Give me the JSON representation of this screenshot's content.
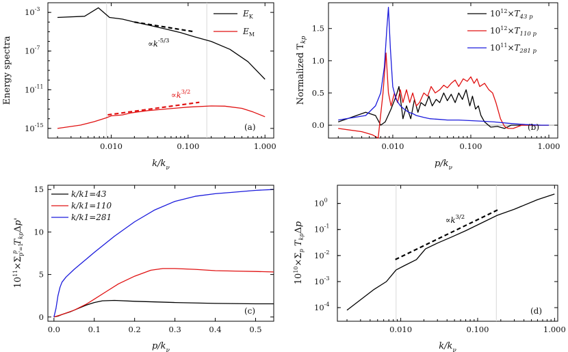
{
  "chart_data": [
    {
      "id": "a",
      "type": "line",
      "panel_label": "(a)",
      "xscale": "log",
      "yscale": "log",
      "xlim": [
        0.0015,
        1.3
      ],
      "ylim": [
        1e-16,
        0.01
      ],
      "xticks": [
        0.01,
        0.1,
        1.0
      ],
      "xtick_labels": [
        "0.010",
        "0.100",
        "1.000"
      ],
      "yticks": [
        0.001,
        1e-07,
        1e-11,
        1e-15
      ],
      "ytick_labels": [
        {
          "base": "10",
          "exp": "-3"
        },
        {
          "base": "10",
          "exp": "-7"
        },
        {
          "base": "10",
          "exp": "-11"
        },
        {
          "base": "10",
          "exp": "-15"
        }
      ],
      "vlines": [
        0.0087,
        0.175
      ],
      "xlabel": "k/kν",
      "ylabel": "Energy spectra",
      "legend_position": "top-right",
      "series": [
        {
          "name": "E_K",
          "label_main": "E",
          "label_sub": "K",
          "color": "#000000",
          "x": [
            0.002,
            0.0045,
            0.0068,
            0.0095,
            0.014,
            0.02,
            0.03,
            0.05,
            0.08,
            0.12,
            0.2,
            0.35,
            0.6,
            1.0
          ],
          "y": [
            0.0003,
            0.0004,
            0.003,
            0.0003,
            0.0002,
            0.0001,
            5e-05,
            2e-05,
            8e-06,
            3e-06,
            1e-06,
            1.5e-07,
            8e-09,
            1.2e-10
          ]
        },
        {
          "name": "E_M",
          "label_main": "E",
          "label_sub": "M",
          "color": "#e01010",
          "x": [
            0.002,
            0.004,
            0.006,
            0.0085,
            0.01,
            0.014,
            0.018,
            0.022,
            0.03,
            0.05,
            0.1,
            0.2,
            0.3,
            0.5,
            0.7,
            1.0
          ],
          "y": [
            1e-15,
            2.2e-15,
            5e-15,
            1.2e-14,
            2e-14,
            2.5e-14,
            4e-14,
            5e-14,
            7e-14,
            1e-13,
            1.6e-13,
            2.1e-13,
            2e-13,
            1.2e-13,
            5e-14,
            1.6e-14
          ]
        }
      ],
      "fits": [
        {
          "x": [
            0.02,
            0.12
          ],
          "y": [
            0.0001,
            1e-05
          ],
          "color": "#000000"
        },
        {
          "x": [
            0.009,
            0.14
          ],
          "y": [
            2.5e-14,
            5e-13
          ],
          "color": "#e01010"
        }
      ],
      "annotations": [
        {
          "prefix": "∝k",
          "exp": "-5/3",
          "color": "#000000",
          "at_x": 0.03,
          "at_y": 3e-07
        },
        {
          "prefix": "∝k",
          "exp": "3/2",
          "color": "#e01010",
          "at_x": 0.06,
          "at_y": 1.5e-12
        }
      ]
    },
    {
      "id": "b",
      "type": "line",
      "panel_label": "(b)",
      "xscale": "log",
      "yscale": "linear",
      "xlim": [
        0.0015,
        1.3
      ],
      "ylim": [
        -0.2,
        1.9
      ],
      "xticks": [
        0.01,
        0.1,
        1.0
      ],
      "xtick_labels": [
        "0.010",
        "0.100",
        "1.000"
      ],
      "yticks": [
        0.0,
        0.5,
        1.0,
        1.5
      ],
      "ytick_labels": [
        "0.0",
        "0.5",
        "1.0",
        "1.5"
      ],
      "zero_line": true,
      "xlabel": "p/kν",
      "ylabel": "Normalized T",
      "ylabel_sub": "kp",
      "legend_position": "top-right",
      "series": [
        {
          "name": "10^12 x T_43p",
          "coef": "10",
          "coef_exp": "12",
          "sym": "T",
          "sub": "43 p",
          "color": "#000000",
          "x": [
            0.002,
            0.0045,
            0.006,
            0.007,
            0.008,
            0.0095,
            0.011,
            0.012,
            0.0135,
            0.015,
            0.017,
            0.019,
            0.021,
            0.023,
            0.026,
            0.029,
            0.032,
            0.036,
            0.04,
            0.045,
            0.05,
            0.056,
            0.063,
            0.07,
            0.078,
            0.087,
            0.097,
            0.105,
            0.115,
            0.125,
            0.135,
            0.15,
            0.18,
            0.22,
            0.27,
            0.33,
            0.45,
            0.7,
            1.0
          ],
          "y": [
            0.05,
            0.2,
            0.15,
            0.0,
            0.05,
            0.25,
            0.45,
            0.6,
            0.1,
            0.3,
            0.1,
            0.4,
            0.2,
            0.35,
            0.3,
            0.45,
            0.3,
            0.4,
            0.35,
            0.5,
            0.38,
            0.48,
            0.35,
            0.5,
            0.4,
            0.55,
            0.3,
            0.45,
            0.25,
            0.3,
            0.15,
            0.05,
            -0.03,
            -0.02,
            -0.05,
            0.0,
            0.0,
            0.0,
            0.0
          ]
        },
        {
          "name": "10^12 x T_110p",
          "coef": "10",
          "coef_exp": "12",
          "sym": "T",
          "sub": "110 p",
          "color": "#e01010",
          "x": [
            0.002,
            0.004,
            0.0055,
            0.0065,
            0.0075,
            0.0082,
            0.0088,
            0.0095,
            0.0105,
            0.0115,
            0.0125,
            0.0135,
            0.015,
            0.0165,
            0.018,
            0.02,
            0.022,
            0.025,
            0.028,
            0.031,
            0.035,
            0.04,
            0.045,
            0.05,
            0.056,
            0.063,
            0.07,
            0.08,
            0.09,
            0.1,
            0.11,
            0.12,
            0.13,
            0.15,
            0.17,
            0.19,
            0.21,
            0.24,
            0.27,
            0.3,
            0.35,
            0.45,
            0.7,
            1.0
          ],
          "y": [
            -0.05,
            -0.1,
            -0.15,
            -0.2,
            0.5,
            1.12,
            0.5,
            0.3,
            0.5,
            0.35,
            0.55,
            0.35,
            0.55,
            0.35,
            0.5,
            0.3,
            0.35,
            0.5,
            0.45,
            0.6,
            0.5,
            0.55,
            0.62,
            0.58,
            0.65,
            0.7,
            0.6,
            0.72,
            0.68,
            0.75,
            0.65,
            0.72,
            0.6,
            0.65,
            0.55,
            0.5,
            0.35,
            0.1,
            -0.02,
            -0.05,
            -0.05,
            0.0,
            0.0,
            0.0
          ]
        },
        {
          "name": "10^11 x T_281p",
          "coef": "10",
          "coef_exp": "11",
          "sym": "T",
          "sub": "281 p",
          "color": "#1a1adc",
          "x": [
            0.002,
            0.0045,
            0.006,
            0.007,
            0.0078,
            0.0084,
            0.0088,
            0.0093,
            0.01,
            0.011,
            0.0125,
            0.014,
            0.016,
            0.018,
            0.02,
            0.025,
            0.03,
            0.04,
            0.05,
            0.07,
            0.1,
            0.15,
            0.2,
            0.3,
            0.5,
            0.8,
            1.0
          ],
          "y": [
            0.08,
            0.15,
            0.3,
            0.5,
            0.9,
            1.5,
            1.83,
            1.2,
            0.6,
            0.4,
            0.3,
            0.25,
            0.2,
            0.18,
            0.15,
            0.12,
            0.1,
            0.09,
            0.08,
            0.08,
            0.07,
            0.06,
            0.05,
            0.03,
            0.01,
            0.0,
            0.0
          ]
        }
      ]
    },
    {
      "id": "c",
      "type": "line",
      "panel_label": "(c)",
      "xscale": "linear",
      "yscale": "linear",
      "xlim": [
        -0.015,
        0.545
      ],
      "ylim": [
        -0.5,
        15.5
      ],
      "xticks": [
        0.0,
        0.1,
        0.2,
        0.3,
        0.4,
        0.5
      ],
      "xtick_labels": [
        "0.0",
        "0.1",
        "0.2",
        "0.3",
        "0.4",
        "0.5"
      ],
      "yticks": [
        0,
        5,
        10,
        15
      ],
      "ytick_labels": [
        "0",
        "5",
        "10",
        "15"
      ],
      "xlabel": "p/kν",
      "ylabel": "10^11 × Σ T_kp Δp'",
      "legend_position": "top-left",
      "series": [
        {
          "name": "k/k1=43",
          "color": "#000000",
          "x": [
            0.0,
            0.01,
            0.02,
            0.04,
            0.06,
            0.08,
            0.1,
            0.12,
            0.15,
            0.2,
            0.3,
            0.4,
            0.5,
            0.545
          ],
          "y": [
            0.0,
            0.1,
            0.3,
            0.6,
            1.0,
            1.4,
            1.7,
            1.9,
            1.95,
            1.85,
            1.7,
            1.6,
            1.55,
            1.55
          ]
        },
        {
          "name": "k/k1=110",
          "color": "#e01010",
          "x": [
            0.0,
            0.02,
            0.05,
            0.08,
            0.1,
            0.13,
            0.16,
            0.2,
            0.24,
            0.27,
            0.3,
            0.35,
            0.4,
            0.45,
            0.5,
            0.545
          ],
          "y": [
            0.0,
            0.3,
            0.8,
            1.5,
            2.1,
            3.0,
            3.9,
            4.8,
            5.5,
            5.7,
            5.7,
            5.6,
            5.45,
            5.4,
            5.35,
            5.3
          ]
        },
        {
          "name": "k/k1=281",
          "color": "#1a1adc",
          "x": [
            0.0,
            0.005,
            0.01,
            0.015,
            0.02,
            0.03,
            0.05,
            0.08,
            0.1,
            0.15,
            0.2,
            0.25,
            0.3,
            0.35,
            0.4,
            0.45,
            0.5,
            0.545
          ],
          "y": [
            0.0,
            1.0,
            2.5,
            3.5,
            4.1,
            4.7,
            5.6,
            6.8,
            7.6,
            9.5,
            11.2,
            12.6,
            13.6,
            14.2,
            14.5,
            14.7,
            14.9,
            15.0
          ]
        }
      ]
    },
    {
      "id": "d",
      "type": "line",
      "panel_label": "(d)",
      "xscale": "log",
      "yscale": "log",
      "xlim": [
        0.0015,
        1.1
      ],
      "ylim": [
        3e-05,
        5
      ],
      "xticks": [
        0.01,
        0.1,
        1.0
      ],
      "xtick_labels": [
        "0.010",
        "0.100",
        "1.000"
      ],
      "yticks": [
        0.0001,
        0.001,
        0.01,
        0.1,
        1
      ],
      "ytick_labels": [
        {
          "base": "10",
          "exp": "-4"
        },
        {
          "base": "10",
          "exp": "-3"
        },
        {
          "base": "10",
          "exp": "-2"
        },
        {
          "base": "10",
          "exp": "-1"
        },
        {
          "base": "10",
          "exp": "0"
        }
      ],
      "vlines": [
        0.0087,
        0.175
      ],
      "xlabel": "k/kν",
      "ylabel": "10^10 × Σ T_kp Δp",
      "series": [
        {
          "name": "10^10 x sum T_kp dp",
          "color": "#000000",
          "x": [
            0.002,
            0.0045,
            0.0065,
            0.0087,
            0.011,
            0.016,
            0.021,
            0.03,
            0.045,
            0.07,
            0.1,
            0.18,
            0.3,
            0.6,
            1.0
          ],
          "y": [
            8e-05,
            0.0005,
            0.001,
            0.0028,
            0.004,
            0.007,
            0.018,
            0.03,
            0.05,
            0.09,
            0.15,
            0.35,
            0.6,
            1.4,
            2.3
          ]
        }
      ],
      "fits": [
        {
          "x": [
            0.0085,
            0.19
          ],
          "y": [
            0.007,
            0.6
          ],
          "color": "#000000"
        }
      ],
      "annotations": [
        {
          "prefix": "∝k",
          "exp": "3/2",
          "color": "#000000",
          "at_x": 0.038,
          "at_y": 0.18
        }
      ]
    }
  ]
}
